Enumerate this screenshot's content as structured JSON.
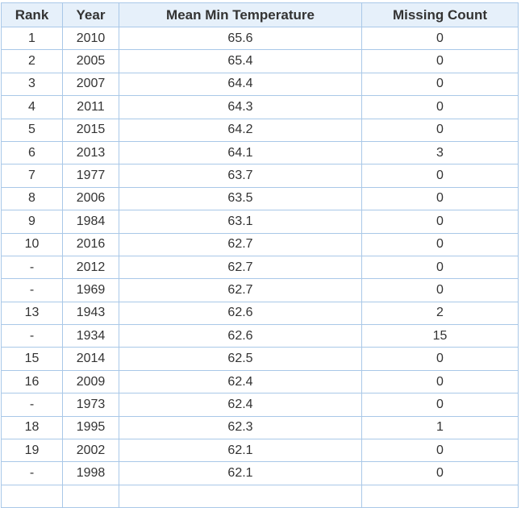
{
  "table": {
    "header": [
      "Rank",
      "Year",
      "Mean Min Temperature",
      "Missing Count"
    ],
    "rows": [
      [
        "1",
        "2010",
        "65.6",
        "0"
      ],
      [
        "2",
        "2005",
        "65.4",
        "0"
      ],
      [
        "3",
        "2007",
        "64.4",
        "0"
      ],
      [
        "4",
        "2011",
        "64.3",
        "0"
      ],
      [
        "5",
        "2015",
        "64.2",
        "0"
      ],
      [
        "6",
        "2013",
        "64.1",
        "3"
      ],
      [
        "7",
        "1977",
        "63.7",
        "0"
      ],
      [
        "8",
        "2006",
        "63.5",
        "0"
      ],
      [
        "9",
        "1984",
        "63.1",
        "0"
      ],
      [
        "10",
        "2016",
        "62.7",
        "0"
      ],
      [
        "-",
        "2012",
        "62.7",
        "0"
      ],
      [
        "-",
        "1969",
        "62.7",
        "0"
      ],
      [
        "13",
        "1943",
        "62.6",
        "2"
      ],
      [
        "-",
        "1934",
        "62.6",
        "15"
      ],
      [
        "15",
        "2014",
        "62.5",
        "0"
      ],
      [
        "16",
        "2009",
        "62.4",
        "0"
      ],
      [
        "-",
        "1973",
        "62.4",
        "0"
      ],
      [
        "18",
        "1995",
        "62.3",
        "1"
      ],
      [
        "19",
        "2002",
        "62.1",
        "0"
      ],
      [
        "-",
        "1998",
        "62.1",
        "0"
      ]
    ]
  }
}
